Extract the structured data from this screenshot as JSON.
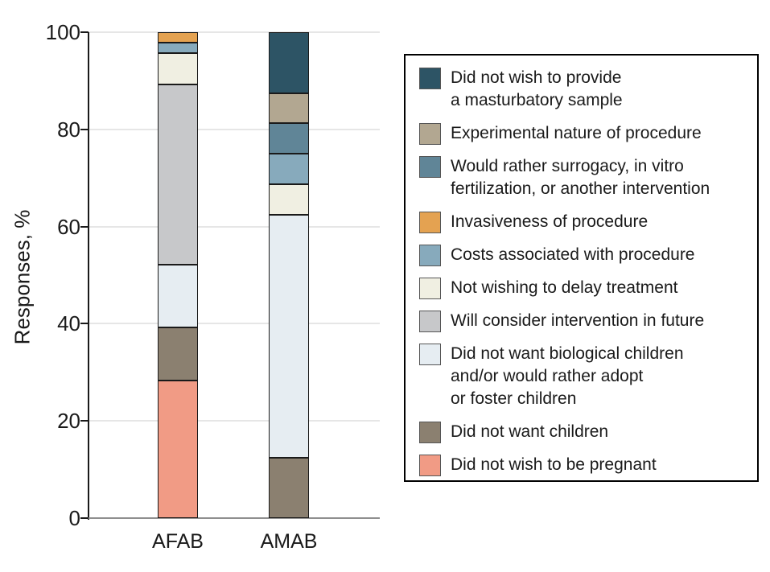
{
  "chart_data": {
    "type": "bar",
    "subtype": "stacked-vertical",
    "title": "",
    "ylabel": "Responses, %",
    "xlabel": "",
    "ylim": [
      0,
      100
    ],
    "yticks": [
      0,
      20,
      40,
      60,
      80,
      100
    ],
    "grid": "horizontal-light-gray",
    "legend_position": "right-boxed",
    "categories": [
      "AFAB",
      "AMAB"
    ],
    "series": [
      {
        "name": "Did not wish to be pregnant",
        "color": "#f19b85",
        "values": [
          28.3,
          0
        ]
      },
      {
        "name": "Did not want children",
        "color": "#8b8070",
        "values": [
          10.9,
          12.5
        ]
      },
      {
        "name": "Did not want biological children and/or would rather adopt or foster children",
        "color": "#e6edf2",
        "values": [
          13.0,
          50.0
        ]
      },
      {
        "name": "Will consider intervention in future",
        "color": "#c7c8ca",
        "values": [
          37.0,
          0
        ]
      },
      {
        "name": "Not wishing to delay treatment",
        "color": "#f0efe2",
        "values": [
          6.5,
          6.25
        ]
      },
      {
        "name": "Costs associated with procedure",
        "color": "#87aabc",
        "values": [
          2.2,
          6.25
        ]
      },
      {
        "name": "Invasiveness of procedure",
        "color": "#e4a251",
        "values": [
          2.2,
          0
        ]
      },
      {
        "name": "Would rather surrogacy, in vitro fertilization, or another intervention",
        "color": "#608597",
        "values": [
          0,
          6.25
        ]
      },
      {
        "name": "Experimental nature of procedure",
        "color": "#b2a791",
        "values": [
          0,
          6.25
        ]
      },
      {
        "name": "Did not wish to provide a masturbatory sample",
        "color": "#2d5465",
        "values": [
          0,
          12.5
        ]
      }
    ],
    "legend_items": [
      {
        "color": "#2d5465",
        "lines": [
          "Did not wish to provide",
          "a masturbatory sample"
        ]
      },
      {
        "color": "#b2a791",
        "lines": [
          "Experimental nature of procedure"
        ]
      },
      {
        "color": "#608597",
        "lines": [
          "Would rather surrogacy, in vitro",
          "fertilization, or another intervention"
        ]
      },
      {
        "color": "#e4a251",
        "lines": [
          "Invasiveness of procedure"
        ]
      },
      {
        "color": "#87aabc",
        "lines": [
          "Costs associated with procedure"
        ]
      },
      {
        "color": "#f0efe2",
        "lines": [
          "Not wishing to delay treatment"
        ]
      },
      {
        "color": "#c7c8ca",
        "lines": [
          "Will consider intervention in future"
        ]
      },
      {
        "color": "#e6edf2",
        "lines": [
          "Did not want biological children",
          "and/or would rather adopt",
          "or foster children"
        ]
      },
      {
        "color": "#8b8070",
        "lines": [
          "Did not want children"
        ]
      },
      {
        "color": "#f19b85",
        "lines": [
          "Did not wish to be pregnant"
        ]
      }
    ]
  }
}
